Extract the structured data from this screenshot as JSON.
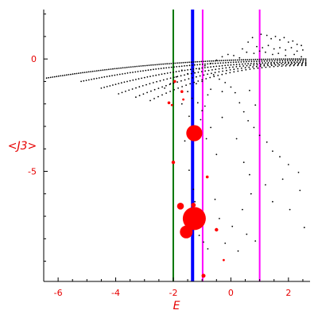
{
  "chart_data": {
    "type": "scatter",
    "xlabel": "E",
    "ylabel": "<J3>",
    "xlim": [
      -6.5,
      2.75
    ],
    "ylim": [
      -9.9,
      2.2
    ],
    "x_ticks": [
      -6,
      -4,
      -2,
      0,
      2
    ],
    "x_tick_labels": [
      "-6",
      "-4",
      "-2",
      "0",
      "2"
    ],
    "y_ticks": [
      0,
      -5
    ],
    "y_tick_labels": [
      "0",
      "-5"
    ],
    "grid": false,
    "colors": {
      "axis": "#000000",
      "labels": "#e60000",
      "points_black": "#000000",
      "points_red": "#ff0000",
      "line_green": "#007700",
      "line_blue": "#0000ff",
      "line_magenta": "#ff00ff"
    },
    "vertical_lines": [
      {
        "x": -2.0,
        "color": "#007700",
        "width": 2
      },
      {
        "x": -1.33,
        "color": "#0000ff",
        "width": 4
      },
      {
        "x": -0.98,
        "color": "#ff00ff",
        "width": 2
      },
      {
        "x": 1.0,
        "color": "#ff00ff",
        "width": 2
      }
    ],
    "black_branches": [
      {
        "x0": -6.4,
        "x1": 2.6,
        "y0": -0.85,
        "y1": 0.0,
        "step": 0.07
      },
      {
        "x0": -5.2,
        "x1": 2.6,
        "y0": -1.0,
        "y1": -0.07,
        "step": 0.09
      },
      {
        "x0": -4.5,
        "x1": 2.6,
        "y0": -1.3,
        "y1": -0.14,
        "step": 0.1
      },
      {
        "x0": -3.9,
        "x1": 2.6,
        "y0": -1.55,
        "y1": -0.19,
        "step": 0.12
      },
      {
        "x0": -3.3,
        "x1": 2.6,
        "y0": -1.7,
        "y1": -0.24,
        "step": 0.13
      },
      {
        "x0": -2.8,
        "x1": 2.6,
        "y0": -1.85,
        "y1": -0.29,
        "step": 0.14
      }
    ],
    "black_scatter": [
      [
        1.05,
        1.1
      ],
      [
        1.25,
        1.05
      ],
      [
        1.4,
        0.9
      ],
      [
        1.55,
        1.0
      ],
      [
        1.7,
        0.85
      ],
      [
        1.85,
        0.95
      ],
      [
        2.0,
        0.75
      ],
      [
        2.15,
        0.8
      ],
      [
        2.3,
        0.65
      ],
      [
        2.45,
        0.6
      ],
      [
        0.6,
        0.75
      ],
      [
        0.75,
        0.95
      ],
      [
        0.9,
        0.55
      ],
      [
        1.1,
        0.5
      ],
      [
        1.3,
        0.6
      ],
      [
        1.5,
        0.45
      ],
      [
        1.7,
        0.5
      ],
      [
        1.9,
        0.4
      ],
      [
        2.1,
        0.5
      ],
      [
        2.3,
        0.35
      ],
      [
        2.5,
        0.4
      ],
      [
        0.4,
        0.45
      ],
      [
        0.55,
        0.3
      ],
      [
        0.8,
        0.25
      ],
      [
        1.0,
        0.35
      ],
      [
        1.2,
        0.3
      ],
      [
        1.45,
        0.2
      ],
      [
        1.65,
        0.25
      ],
      [
        1.9,
        0.15
      ],
      [
        2.2,
        0.2
      ],
      [
        2.45,
        0.1
      ],
      [
        -0.3,
        0.1
      ],
      [
        -0.1,
        0.2
      ],
      [
        0.1,
        0.15
      ],
      [
        0.3,
        0.05
      ],
      [
        -0.5,
        -0.05
      ],
      [
        -0.7,
        -0.2
      ],
      [
        -0.9,
        -0.3
      ],
      [
        -1.1,
        -0.45
      ],
      [
        -1.3,
        -0.55
      ],
      [
        -1.5,
        -0.65
      ],
      [
        -1.7,
        -0.5
      ],
      [
        -1.9,
        -0.8
      ],
      [
        -2.1,
        -1.1
      ],
      [
        -2.3,
        -1.3
      ],
      [
        -1.5,
        -1.45
      ],
      [
        -1.2,
        -1.1
      ],
      [
        -1.0,
        -1.0
      ],
      [
        -0.8,
        -1.6
      ],
      [
        -0.7,
        -1.35
      ],
      [
        -0.6,
        -0.7
      ],
      [
        -0.4,
        -0.9
      ],
      [
        -0.2,
        -1.05
      ],
      [
        0.0,
        -1.25
      ],
      [
        0.15,
        -1.5
      ],
      [
        0.3,
        -1.95
      ],
      [
        0.45,
        -2.35
      ],
      [
        0.6,
        -2.75
      ],
      [
        0.8,
        -3.05
      ],
      [
        1.0,
        -3.4
      ],
      [
        1.25,
        -3.7
      ],
      [
        1.45,
        -4.1
      ],
      [
        1.7,
        -4.35
      ],
      [
        2.0,
        -4.7
      ],
      [
        2.35,
        -5.05
      ],
      [
        -1.45,
        -4.95
      ],
      [
        -1.3,
        -5.8
      ],
      [
        -1.25,
        -6.35
      ],
      [
        -1.2,
        -7.15
      ],
      [
        -1.1,
        -7.85
      ],
      [
        -0.95,
        -8.15
      ],
      [
        -0.8,
        -8.45
      ],
      [
        -0.55,
        -6.25
      ],
      [
        -0.4,
        -7.1
      ],
      [
        -0.2,
        -8.2
      ],
      [
        0.05,
        -7.45
      ],
      [
        0.25,
        -8.55
      ],
      [
        0.4,
        -6.7
      ],
      [
        0.55,
        -7.8
      ],
      [
        0.7,
        -6.0
      ],
      [
        0.85,
        -8.1
      ],
      [
        1.2,
        -5.6
      ],
      [
        1.45,
        -6.35
      ],
      [
        1.8,
        -5.35
      ],
      [
        2.05,
        -6.7
      ],
      [
        2.4,
        -5.85
      ],
      [
        2.55,
        -7.5
      ],
      [
        -0.7,
        -3.05
      ],
      [
        -0.5,
        -4.25
      ],
      [
        -0.3,
        -2.6
      ],
      [
        0.2,
        -3.55
      ],
      [
        0.45,
        -4.6
      ],
      [
        0.65,
        -5.15
      ],
      [
        -1.7,
        -2.0
      ],
      [
        -1.45,
        -2.55
      ],
      [
        -1.6,
        -3.65
      ],
      [
        -1.0,
        -2.3
      ],
      [
        -0.85,
        -3.55
      ],
      [
        -1.05,
        -2.7
      ],
      [
        -0.9,
        -2.1
      ],
      [
        -1.15,
        -1.95
      ],
      [
        -1.35,
        -1.75
      ],
      [
        -0.3,
        -1.45
      ],
      [
        0.65,
        -1.4
      ],
      [
        0.85,
        -2.05
      ]
    ],
    "red_points": [
      {
        "x": -1.27,
        "y": -3.3,
        "r": 0.28
      },
      {
        "x": -1.27,
        "y": -7.1,
        "r": 0.4
      },
      {
        "x": -1.55,
        "y": -7.7,
        "r": 0.22
      },
      {
        "x": -1.75,
        "y": -6.55,
        "r": 0.12
      },
      {
        "x": -1.3,
        "y": -6.5,
        "r": 0.08
      },
      {
        "x": -1.35,
        "y": -7.5,
        "r": 0.07
      },
      {
        "x": -2.0,
        "y": -4.6,
        "r": 0.06
      },
      {
        "x": -0.5,
        "y": -7.6,
        "r": 0.06
      },
      {
        "x": -0.95,
        "y": -9.65,
        "r": 0.07
      },
      {
        "x": -0.82,
        "y": -5.25,
        "r": 0.05
      },
      {
        "x": -0.25,
        "y": -8.95,
        "r": 0.04
      },
      {
        "x": -2.15,
        "y": -1.95,
        "r": 0.05
      },
      {
        "x": -2.05,
        "y": -2.05,
        "r": 0.04
      },
      {
        "x": -1.95,
        "y": -1.0,
        "r": 0.05
      },
      {
        "x": -1.7,
        "y": -1.45,
        "r": 0.05
      },
      {
        "x": -1.65,
        "y": -1.8,
        "r": 0.04
      }
    ]
  }
}
